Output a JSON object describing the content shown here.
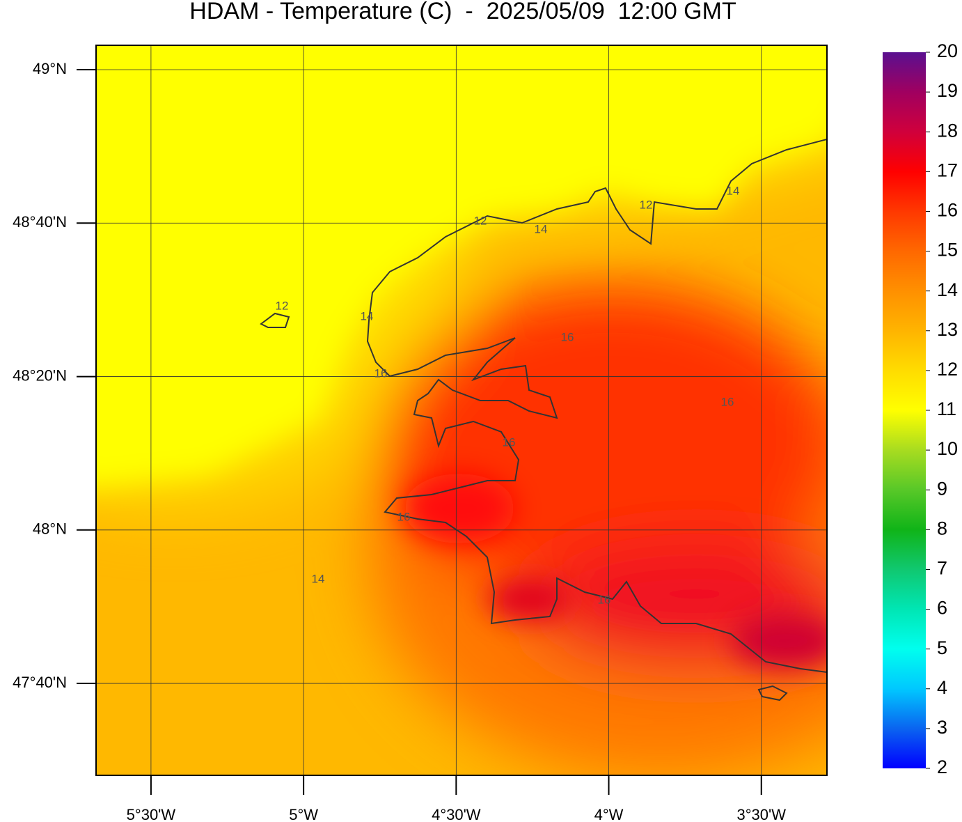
{
  "title": "HDAM - Temperature (C)  -  2025/05/09  12:00 GMT",
  "map": {
    "xlim": [
      -5.68,
      -3.285
    ],
    "ylim": [
      47.467,
      49.053
    ],
    "lon_ticks": [
      {
        "value": -5.5,
        "label": "5°30'W"
      },
      {
        "value": -5,
        "label": "5°W"
      },
      {
        "value": -4.5,
        "label": "4°30'W"
      },
      {
        "value": -4,
        "label": "4°W"
      },
      {
        "value": -3.5,
        "label": "3°30'W"
      }
    ],
    "lat_ticks": [
      {
        "value": 49,
        "label": "49°N"
      },
      {
        "value": 48.6667,
        "label": "48°40'N"
      },
      {
        "value": 48.3333,
        "label": "48°20'N"
      },
      {
        "value": 48,
        "label": "48°N"
      },
      {
        "value": 47.6667,
        "label": "47°40'N"
      }
    ],
    "grid": true,
    "contour_labels": [
      "12",
      "12",
      "12",
      "14",
      "14",
      "14",
      "14",
      "16",
      "16",
      "16",
      "16",
      "16",
      "16"
    ]
  },
  "colorbar": {
    "range": [
      2,
      20
    ],
    "ticks": [
      2,
      3,
      4,
      5,
      6,
      7,
      8,
      9,
      10,
      11,
      12,
      13,
      14,
      15,
      16,
      17,
      18,
      19,
      20
    ],
    "colors": [
      "#0000ff",
      "#0a64f0",
      "#00c8ff",
      "#00ffee",
      "#00e6b4",
      "#10c870",
      "#10b418",
      "#58c828",
      "#a8dc20",
      "#ffff00",
      "#ffdc00",
      "#ffb400",
      "#ff9000",
      "#ff6800",
      "#ff3800",
      "#ff0000",
      "#d0003c",
      "#a00060",
      "#5a1090"
    ]
  }
}
